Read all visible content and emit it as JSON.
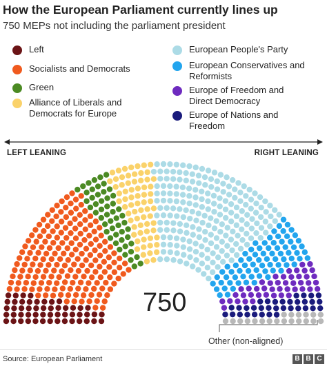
{
  "title": "How the European Parliament currently lines up",
  "subtitle": "750 MEPs not including the parliament president",
  "left_leaning": "LEFT LEANING",
  "right_leaning": "RIGHT LEANING",
  "total": "750",
  "other_label": "Other (non-aligned)",
  "source": "Source: European Parliament",
  "brand": [
    "B",
    "B",
    "C"
  ],
  "chart_data": {
    "type": "parliament",
    "total": 750,
    "legend": [
      {
        "name": "Left",
        "color": "#6b1416"
      },
      {
        "name": "Socialists and Democrats",
        "color": "#f05a1e"
      },
      {
        "name": "Green",
        "color": "#4b8a23"
      },
      {
        "name": "Alliance of Liberals and Democrats for Europe",
        "color": "#fad26a"
      },
      {
        "name": "European People's Party",
        "color": "#acdbe6"
      },
      {
        "name": "European Conservatives and Reformists",
        "color": "#22a5ee"
      },
      {
        "name": "Europe of Freedom and Direct Democracy",
        "color": "#6e2bbf"
      },
      {
        "name": "Europe of Nations and Freedom",
        "color": "#1a1b7c"
      },
      {
        "name": "Other (non-aligned)",
        "color": "#b8b8b8"
      }
    ],
    "groups": [
      {
        "name": "Left",
        "seats": 52,
        "color": "#6b1416"
      },
      {
        "name": "Socialists and Democrats",
        "seats": 187,
        "color": "#f05a1e"
      },
      {
        "name": "Green",
        "seats": 52,
        "color": "#4b8a23"
      },
      {
        "name": "Alliance of Liberals and Democrats for Europe",
        "seats": 68,
        "color": "#fad26a"
      },
      {
        "name": "European People's Party",
        "seats": 217,
        "color": "#acdbe6"
      },
      {
        "name": "European Conservatives and Reformists",
        "seats": 75,
        "color": "#22a5ee"
      },
      {
        "name": "Europe of Freedom and Direct Democracy",
        "seats": 45,
        "color": "#6e2bbf"
      },
      {
        "name": "Europe of Nations and Freedom",
        "seats": 34,
        "color": "#1a1b7c"
      },
      {
        "name": "Other (non-aligned)",
        "seats": 20,
        "color": "#b8b8b8"
      }
    ]
  }
}
